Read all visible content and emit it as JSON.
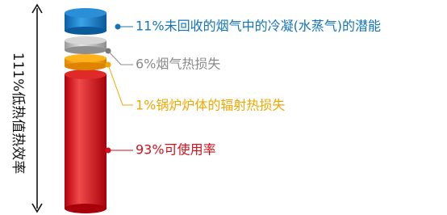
{
  "efficiency_label": "111%低热值热效率",
  "items": [
    {
      "label": "11%未回收的烟气中的冷凝(水蒸气)的潜能"
    },
    {
      "label": "6%烟气热损失"
    },
    {
      "label": "1%锅炉炉体的辐射热损失"
    },
    {
      "label": "93%可使用率"
    }
  ]
}
